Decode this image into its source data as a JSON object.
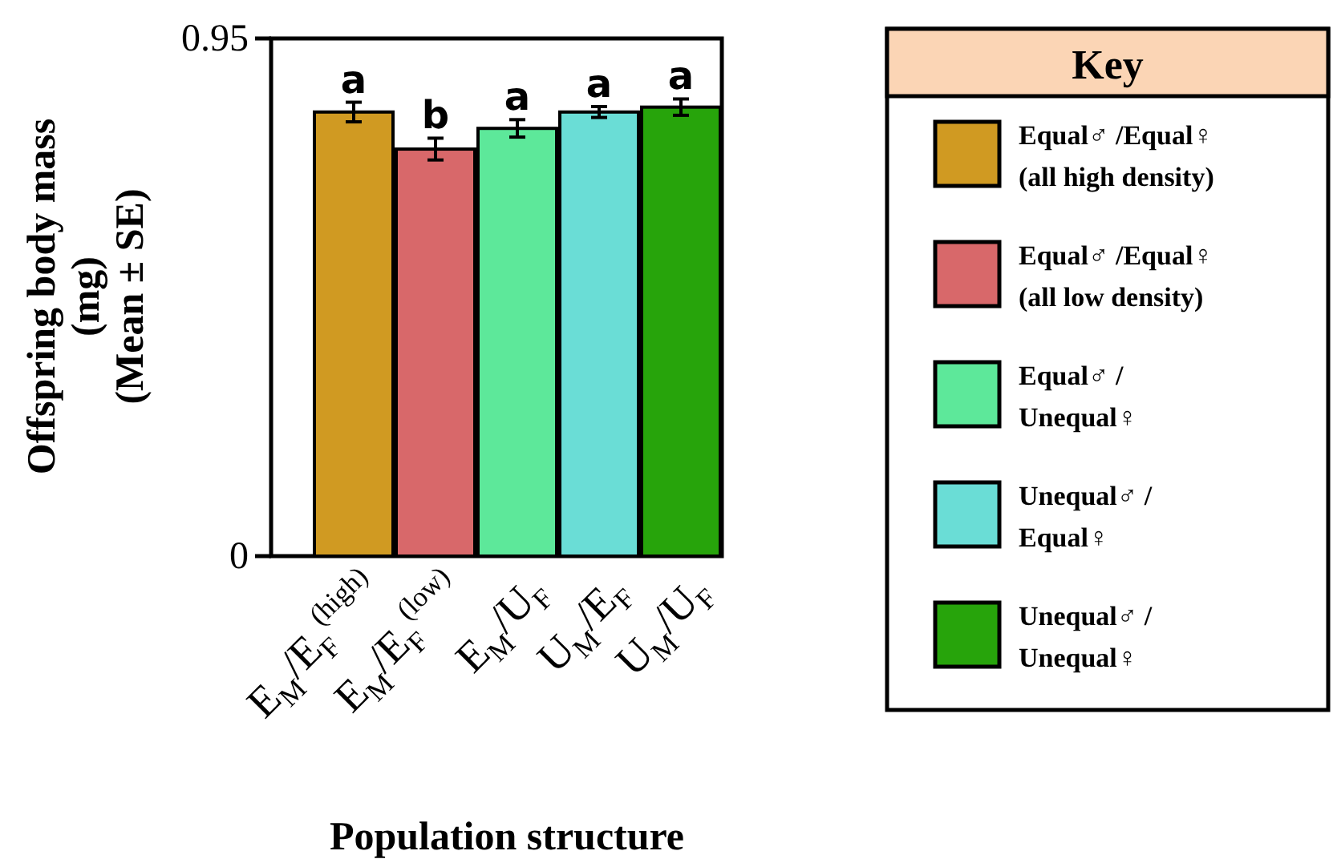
{
  "chart_data": {
    "type": "bar",
    "xlabel": "Population structure",
    "ylabel": "Offspring body mass\n(mg)\n(Mean ± SE)",
    "legend_title": "Key",
    "legend": "right",
    "categories": [
      "E$_{M}$/E$_{F}$$^{(high)}$",
      "E$_{M}$/E$_{F}$$^{(low)}$",
      "E$_{M}$/U$_{F}$",
      "U$_{M}$/E$_{F}$",
      "U$_{M}$/U$_{F}$"
    ],
    "ylim": [
      0,
      0.95
    ],
    "yticks": [
      0,
      0.95
    ],
    "series": [
      {
        "name": "Equal♂ /Equal♀ (all high density)",
        "color": "#d09a22",
        "values": [
          0.815,
          null,
          null,
          null,
          null
        ],
        "errors": [
          0.018,
          null,
          null,
          null,
          null
        ]
      },
      {
        "name": "Equal♂ /Equal♀ (all low density)",
        "color": "#d8686a",
        "values": [
          null,
          0.747,
          null,
          null,
          null
        ],
        "errors": [
          null,
          0.02,
          null,
          null,
          null
        ]
      },
      {
        "name": "Equal♂ / Unequal♀",
        "color": "#5de89a",
        "values": [
          null,
          null,
          0.785,
          null,
          null
        ],
        "errors": [
          null,
          null,
          0.016,
          null,
          null
        ]
      },
      {
        "name": "Unequal♂ / Equal♀",
        "color": "#6addd6",
        "values": [
          null,
          null,
          null,
          0.815,
          null
        ],
        "errors": [
          null,
          null,
          null,
          0.01,
          null
        ]
      },
      {
        "name": "Unequal♂ / Unequal♀",
        "color": "#27a40b",
        "values": [
          null,
          null,
          null,
          null,
          0.824
        ],
        "errors": [
          null,
          null,
          null,
          null,
          0.015
        ]
      }
    ],
    "annotations": [
      "a",
      "b",
      "a",
      "a",
      "a"
    ]
  }
}
